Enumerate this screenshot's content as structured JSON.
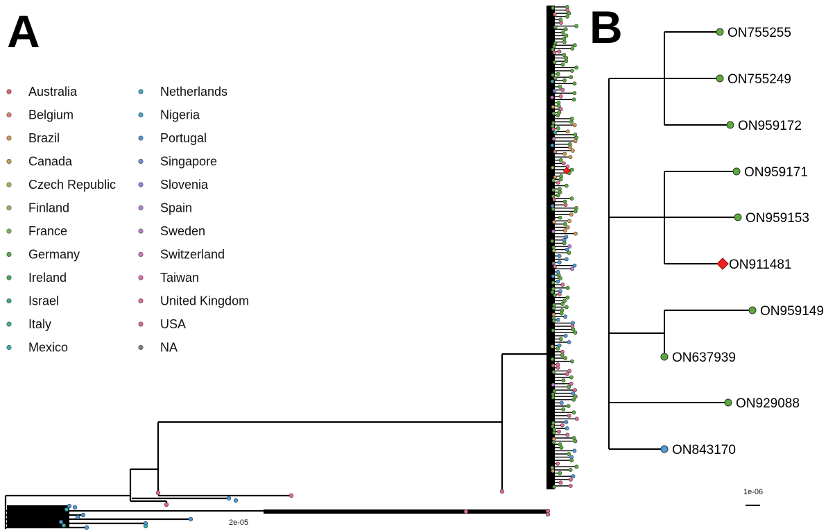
{
  "panel_a": {
    "letter": "A",
    "scale_label": "2e-05"
  },
  "panel_b": {
    "letter": "B",
    "scale_label": "1e-06"
  },
  "legend": [
    {
      "name": "Australia",
      "color": "#e06070"
    },
    {
      "name": "Belgium",
      "color": "#e0826a"
    },
    {
      "name": "Brazil",
      "color": "#d99a55"
    },
    {
      "name": "Canada",
      "color": "#c9a050"
    },
    {
      "name": "Czech Republic",
      "color": "#b5ae52"
    },
    {
      "name": "Finland",
      "color": "#9fb556"
    },
    {
      "name": "France",
      "color": "#7db84f"
    },
    {
      "name": "Germany",
      "color": "#5aac45"
    },
    {
      "name": "Ireland",
      "color": "#3fae5a"
    },
    {
      "name": "Israel",
      "color": "#3ab07a"
    },
    {
      "name": "Italy",
      "color": "#38b29a"
    },
    {
      "name": "Mexico",
      "color": "#35b0b5"
    },
    {
      "name": "Netherlands",
      "color": "#38aec6"
    },
    {
      "name": "Nigeria",
      "color": "#3ea6d6"
    },
    {
      "name": "Portugal",
      "color": "#4a9be0"
    },
    {
      "name": "Singapore",
      "color": "#6b8ee2"
    },
    {
      "name": "Slovenia",
      "color": "#8e84e0"
    },
    {
      "name": "Spain",
      "color": "#b07ee0"
    },
    {
      "name": "Sweden",
      "color": "#c878d8"
    },
    {
      "name": "Switzerland",
      "color": "#d872c4"
    },
    {
      "name": "Taiwan",
      "color": "#df6ea8"
    },
    {
      "name": "United Kingdom",
      "color": "#e46a94"
    },
    {
      "name": "USA",
      "color": "#e66a82"
    },
    {
      "name": "NA",
      "color": "#808080"
    }
  ],
  "tree_b": {
    "tips": [
      {
        "label": "ON755255",
        "color": "#5aac3a",
        "shape": "circle"
      },
      {
        "label": "ON755249",
        "color": "#5aac3a",
        "shape": "circle"
      },
      {
        "label": "ON959172",
        "color": "#5aac3a",
        "shape": "circle"
      },
      {
        "label": "ON959171",
        "color": "#5aac3a",
        "shape": "circle"
      },
      {
        "label": "ON959153",
        "color": "#5aac3a",
        "shape": "circle"
      },
      {
        "label": "ON911481",
        "color": "#ee2222",
        "shape": "diamond"
      },
      {
        "label": "ON959149",
        "color": "#5aac3a",
        "shape": "circle"
      },
      {
        "label": "ON637939",
        "color": "#5aac3a",
        "shape": "circle"
      },
      {
        "label": "ON929088",
        "color": "#5aac3a",
        "shape": "circle"
      },
      {
        "label": "ON843170",
        "color": "#4a9be0",
        "shape": "circle"
      }
    ]
  }
}
